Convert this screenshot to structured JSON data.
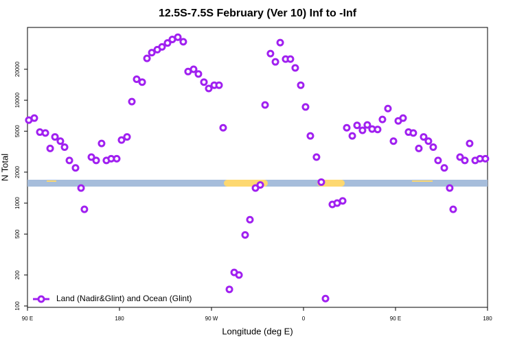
{
  "chart_data": {
    "type": "scatter",
    "title": "12.5S-7.5S February (Ver 10)   Inf to -Inf",
    "xlabel": "Longitude (deg E)",
    "ylabel": "N Total",
    "log_y": true,
    "grid": false,
    "legend": "lower left",
    "xlim": [
      90,
      540
    ],
    "ylim": [
      97,
      51000
    ],
    "xticks": [
      {
        "value": 90,
        "label": "90 E"
      },
      180,
      {
        "value": 270,
        "label": "90 W"
      },
      {
        "value": 360,
        "label": "0"
      },
      {
        "value": 450,
        "label": "90 E"
      },
      {
        "value": 540,
        "label": "180"
      }
    ],
    "yticks": [
      100,
      200,
      500,
      1000,
      2000,
      5000,
      10000,
      20000
    ],
    "x": [
      91.3,
      96.7,
      102.1,
      107.5,
      112.2,
      116.9,
      122.2,
      126.3,
      131,
      137,
      142.4,
      145.7,
      152.5,
      157.2,
      162.5,
      167.2,
      171.9,
      177.3,
      182,
      187.4,
      192.1,
      196.8,
      202.2,
      206.9,
      211.6,
      217,
      221.6,
      227,
      231.7,
      237.1,
      242.4,
      247.1,
      252.5,
      257.2,
      262.6,
      267.3,
      272.7,
      277.4,
      281.4,
      287.5,
      292.2,
      296.9,
      302.9,
      307.6,
      313,
      317.7,
      322.4,
      327.7,
      332.5,
      337.2,
      342.5,
      347.2,
      351.9,
      357.3,
      362,
      366.7,
      372.7,
      377.4,
      381.5,
      388.2,
      392.9,
      398.3,
      402.3,
      407.7,
      412.4,
      417.7,
      422.4,
      427.1,
      432.5,
      437.2,
      442.6,
      448,
      452.7,
      457.4,
      462.7,
      467.4,
      472.8,
      477.5,
      482.2,
      486.9,
      491.6,
      497.7,
      503,
      506.4,
      513.1,
      517.8,
      522.5,
      527.9,
      532.6,
      537.9
    ],
    "series": [
      {
        "name": "Land (Nadir&Glint) and Ocean (Glint)",
        "color": "#a020f0",
        "values": [
          6400,
          6700,
          4900,
          4800,
          3400,
          4400,
          4000,
          3500,
          2600,
          2200,
          1400,
          870,
          2800,
          2600,
          3800,
          2600,
          2700,
          2700,
          4100,
          4400,
          9700,
          16000,
          15000,
          25500,
          29000,
          31000,
          33000,
          36000,
          39000,
          41000,
          37000,
          19000,
          20000,
          18000,
          15000,
          13000,
          14000,
          14000,
          5400,
          145,
          212,
          200,
          490,
          690,
          1400,
          1500,
          9000,
          28400,
          23600,
          36300,
          25100,
          25100,
          20600,
          14000,
          8600,
          4500,
          2800,
          1600,
          118,
          970,
          1000,
          1050,
          5400,
          4500,
          5700,
          5100,
          5750,
          5250,
          5200,
          6500,
          8300,
          4000,
          6300,
          6700,
          4900,
          4800,
          3400,
          4400,
          4000,
          3500,
          2600,
          2200,
          1400,
          870,
          2800,
          2600,
          3800,
          2600,
          2700,
          2700
        ]
      }
    ]
  }
}
